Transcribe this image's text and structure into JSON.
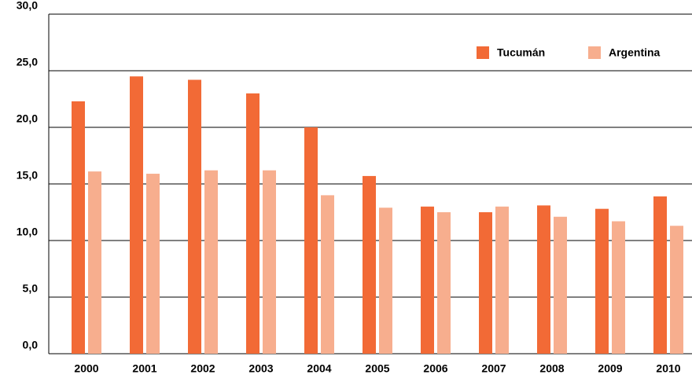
{
  "chart_data": {
    "type": "bar",
    "categories": [
      "2000",
      "2001",
      "2002",
      "2003",
      "2004",
      "2005",
      "2006",
      "2007",
      "2008",
      "2009",
      "2010"
    ],
    "series": [
      {
        "name": "Tucumán",
        "color": "#f26a36",
        "values": [
          22.3,
          24.5,
          24.2,
          23.0,
          20.0,
          15.7,
          13.0,
          12.5,
          13.1,
          12.8,
          13.9
        ]
      },
      {
        "name": "Argentina",
        "color": "#f7ae8e",
        "values": [
          16.1,
          15.9,
          16.2,
          16.2,
          14.0,
          12.9,
          12.5,
          13.0,
          12.1,
          11.7,
          11.3
        ]
      }
    ],
    "ylim": [
      0,
      30
    ],
    "yticks": [
      {
        "value": 0,
        "label": "0,0"
      },
      {
        "value": 5,
        "label": "5,0"
      },
      {
        "value": 10,
        "label": "10,0"
      },
      {
        "value": 15,
        "label": "15,0"
      },
      {
        "value": 20,
        "label": "20,0"
      },
      {
        "value": 25,
        "label": "25,0"
      },
      {
        "value": 30,
        "label": "30,0"
      }
    ],
    "grid": true,
    "legend": "top-right"
  }
}
